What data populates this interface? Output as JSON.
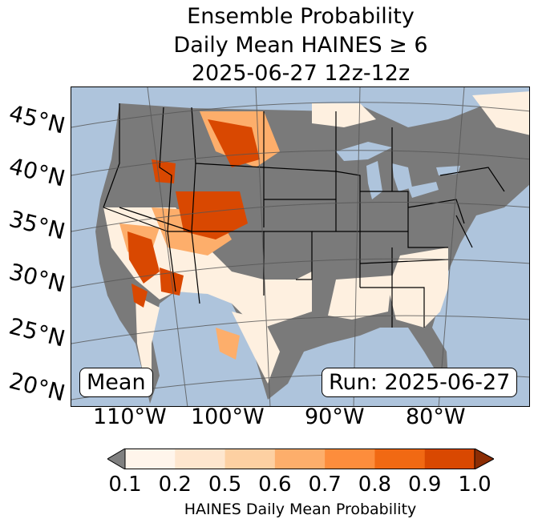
{
  "title": {
    "line1": "Ensemble Probability",
    "line2": "Daily Mean HAINES ≥ 6",
    "line3": "2025-06-27 12z-12z"
  },
  "map": {
    "lat_labels": [
      "45°N",
      "40°N",
      "35°N",
      "30°N",
      "25°N",
      "20°N"
    ],
    "lon_labels": [
      "110°W",
      "100°W",
      "90°W",
      "80°W"
    ],
    "stat_box": "Mean",
    "run_box": "Run: 2025-06-27",
    "colors": {
      "ocean": "#aec4dc",
      "land_below": "#7a7a7a",
      "land_light": "#fef0e0"
    },
    "high_probability_regions": [
      "Utah/Colorado",
      "Nevada/Arizona",
      "Montana/Wyoming",
      "Idaho/Oregon"
    ]
  },
  "colorbar": {
    "label": "HAINES Daily Mean Probability",
    "ticks": [
      "0.1",
      "0.2",
      "0.5",
      "0.6",
      "0.7",
      "0.8",
      "0.9",
      "1.0"
    ],
    "colors": [
      "#fff5eb",
      "#fee6ce",
      "#fdd0a2",
      "#fdae6b",
      "#fd8d3c",
      "#f16913",
      "#d94801"
    ],
    "under_color": "#808080",
    "over_color": "#8c2d04"
  }
}
